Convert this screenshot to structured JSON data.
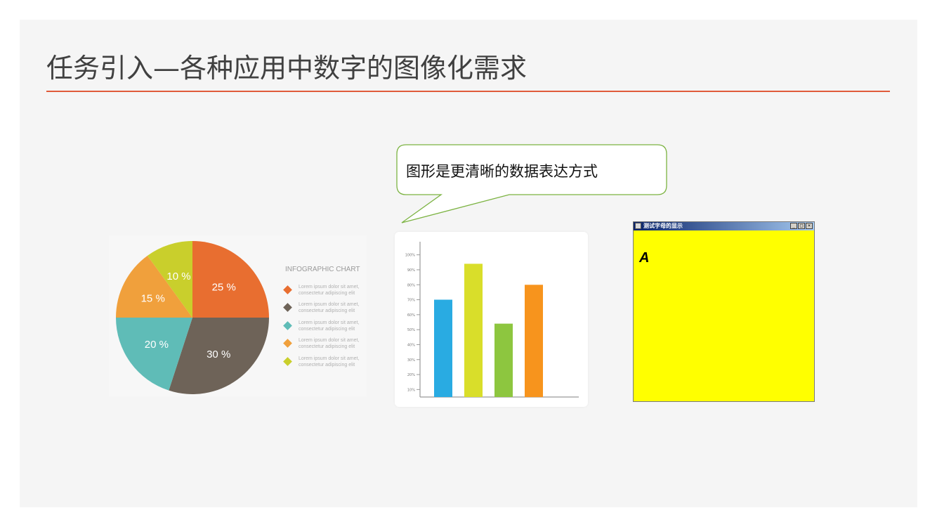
{
  "slide": {
    "title": "任务引入—各种应用中数字的图像化需求",
    "callout": "图形是更清晰的数据表达方式"
  },
  "colors": {
    "accent_rule": "#e05a3a",
    "window_background": "#ffff00"
  },
  "pie_infographic": {
    "legend_title": "INFOGRAPHIC CHART",
    "legend_items": [
      {
        "text1": "Lorem ipsum dolor sit amet,",
        "text2": "consectetur adipiscing elit",
        "color": "#e86e30"
      },
      {
        "text1": "Lorem ipsum dolor sit amet,",
        "text2": "consectetur adipiscing elit",
        "color": "#6e6358"
      },
      {
        "text1": "Lorem ipsum dolor sit amet,",
        "text2": "consectetur adipiscing elit",
        "color": "#5fbcb7"
      },
      {
        "text1": "Lorem ipsum dolor sit amet,",
        "text2": "consectetur adipiscing elit",
        "color": "#f0a03c"
      },
      {
        "text1": "Lorem ipsum dolor sit amet,",
        "text2": "consectetur adipiscing elit",
        "color": "#c9cf2c"
      }
    ]
  },
  "chart_data": [
    {
      "type": "pie",
      "slices": [
        {
          "label": "25 %",
          "value": 25,
          "color": "#e86e30"
        },
        {
          "label": "30 %",
          "value": 30,
          "color": "#6e6358"
        },
        {
          "label": "20 %",
          "value": 20,
          "color": "#5fbcb7"
        },
        {
          "label": "15 %",
          "value": 15,
          "color": "#f0a03c"
        },
        {
          "label": "10 %",
          "value": 10,
          "color": "#c9cf2c"
        }
      ]
    },
    {
      "type": "bar",
      "yticks": [
        "10%",
        "20%",
        "30%",
        "40%",
        "50%",
        "60%",
        "70%",
        "80%",
        "90%",
        "100%"
      ],
      "ylim": [
        5,
        105
      ],
      "values": [
        70,
        94,
        54,
        80
      ],
      "colors": [
        "#29abe2",
        "#d9de2a",
        "#8dc63f",
        "#f7941d"
      ]
    }
  ],
  "app_window": {
    "title": "测试字母的显示",
    "btn_min": "_",
    "btn_max": "□",
    "btn_close": "×",
    "letter": "A"
  }
}
